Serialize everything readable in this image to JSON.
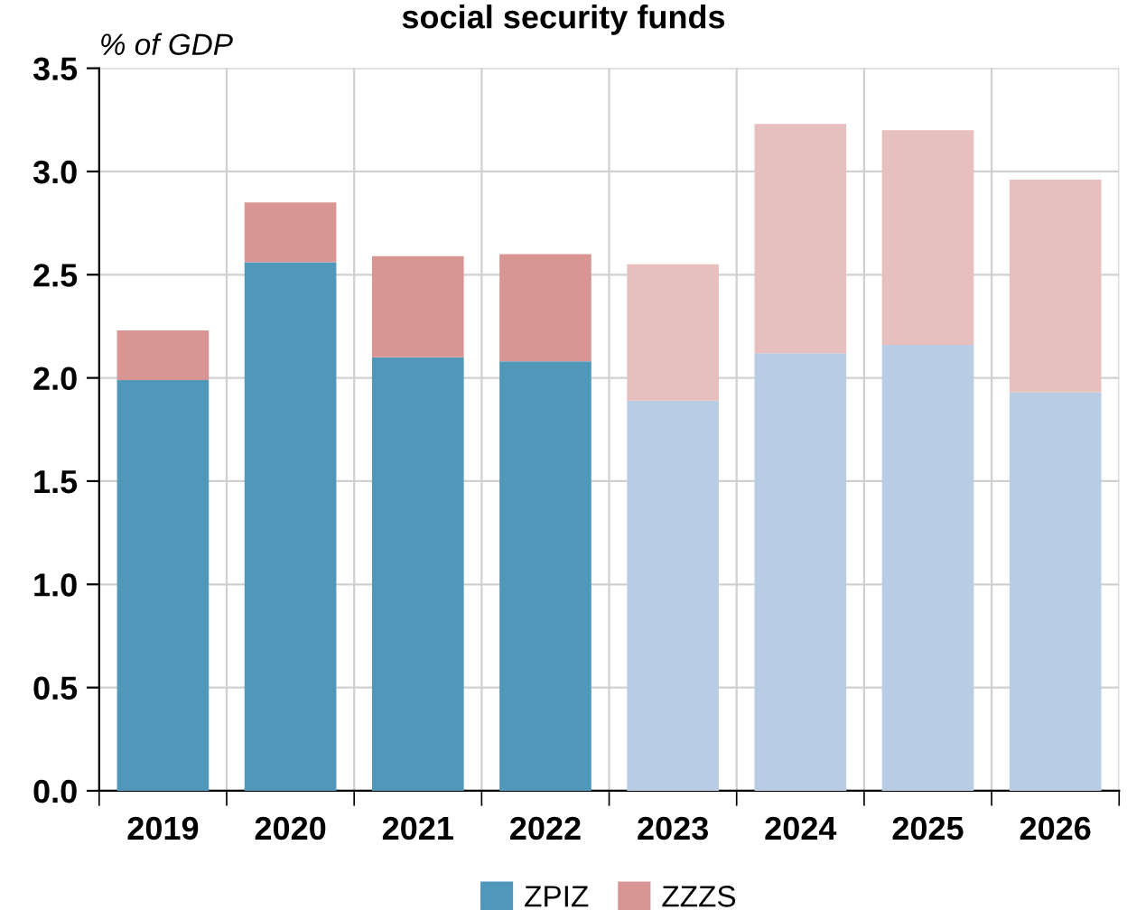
{
  "chart_data": {
    "type": "bar",
    "title": "social security funds",
    "ylabel": "% of GDP",
    "stacked": true,
    "categories": [
      "2019",
      "2020",
      "2021",
      "2022",
      "2023",
      "2024",
      "2025",
      "2026"
    ],
    "series": [
      {
        "name": "ZPIZ",
        "color": "#4f98b9",
        "colors": [
          "#4f98b9",
          "#4f98b9",
          "#4f98b9",
          "#4f98b9",
          "#b8cce4",
          "#b8cce4",
          "#b8cce4",
          "#b8cce4"
        ],
        "values": [
          1.99,
          2.56,
          2.1,
          2.08,
          1.89,
          2.12,
          2.16,
          1.93
        ]
      },
      {
        "name": "ZZZS",
        "color": "#d99594",
        "colors": [
          "#d99594",
          "#d99594",
          "#d99594",
          "#d99594",
          "#e8bfbf",
          "#e8bfbf",
          "#e8bfbf",
          "#e8bfbf"
        ],
        "values": [
          0.24,
          0.29,
          0.49,
          0.52,
          0.66,
          1.11,
          1.04,
          1.03
        ]
      }
    ],
    "ylim": [
      0,
      3.5
    ],
    "yticks": [
      {
        "value": 0,
        "label": "0.0"
      },
      {
        "value": 0.5,
        "label": "0.5"
      },
      {
        "value": 1,
        "label": "1.0"
      },
      {
        "value": 1.5,
        "label": "1.5"
      },
      {
        "value": 2,
        "label": "2.0"
      },
      {
        "value": 2.5,
        "label": "2.5"
      },
      {
        "value": 3,
        "label": "3.0"
      },
      {
        "value": 3.5,
        "label": "3.5"
      }
    ],
    "grid": true,
    "legend": "bottom"
  }
}
